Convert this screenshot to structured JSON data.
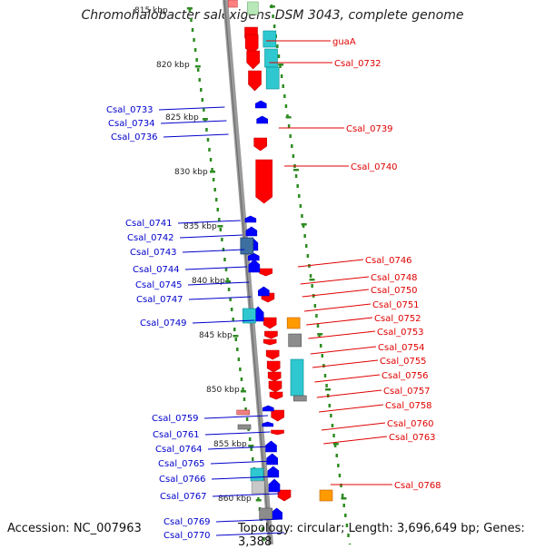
{
  "map": {
    "title": "Chromohalobacter salexigens DSM 3043, complete genome",
    "accession": "Accession: NC_007963",
    "topology": "Topology: circular; Length: 3,696,649 bp; Genes: 3,388"
  },
  "colors": {
    "backbone": "#8a8a8a",
    "tick_dots": "#2e8b22",
    "forward_label": "#e00000",
    "reverse_label": "#0000cc",
    "forward_cds": "#ff0000",
    "reverse_cds": "#0000ff",
    "highlight_cyan": "#2fc8d0",
    "highlight_orange": "#ff9a00",
    "highlight_grey": "#8c8c8c"
  },
  "kbp_labels": [
    "815 kbp",
    "820 kbp",
    "825 kbp",
    "830 kbp",
    "835 kbp",
    "840 kbp",
    "845 kbp",
    "850 kbp",
    "855 kbp",
    "860 kbp"
  ],
  "forward_genes": [
    "guaA",
    "Csal_0732",
    "Csal_0739",
    "Csal_0740",
    "Csal_0746",
    "Csal_0748",
    "Csal_0750",
    "Csal_0751",
    "Csal_0752",
    "Csal_0753",
    "Csal_0754",
    "Csal_0755",
    "Csal_0756",
    "Csal_0757",
    "Csal_0758",
    "Csal_0760",
    "Csal_0763",
    "Csal_0768"
  ],
  "reverse_genes": [
    "Csal_0733",
    "Csal_0734",
    "Csal_0736",
    "Csal_0741",
    "Csal_0742",
    "Csal_0743",
    "Csal_0744",
    "Csal_0745",
    "Csal_0747",
    "Csal_0749",
    "Csal_0759",
    "Csal_0761",
    "Csal_0764",
    "Csal_0765",
    "Csal_0766",
    "Csal_0767",
    "Csal_0769",
    "Csal_0770"
  ]
}
